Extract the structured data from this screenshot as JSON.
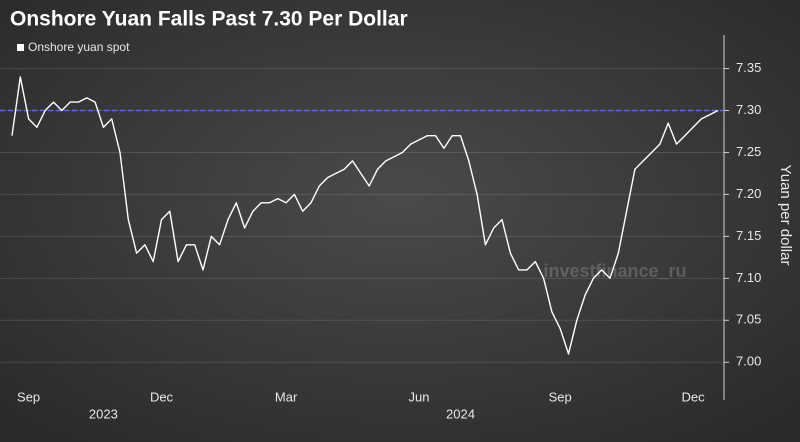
{
  "chart_data": {
    "type": "line",
    "title": "Onshore Yuan Falls Past 7.30 Per Dollar",
    "y_label": "Yuan per dollar",
    "watermark": "investfinance_ru",
    "categories": [
      null,
      null,
      "Sep",
      null,
      null,
      null,
      null,
      null,
      null,
      null,
      null,
      null,
      null,
      null,
      null,
      null,
      null,
      null,
      "Dec",
      null,
      null,
      null,
      null,
      null,
      null,
      null,
      null,
      null,
      null,
      null,
      null,
      null,
      null,
      "Mar",
      null,
      null,
      null,
      null,
      null,
      null,
      null,
      null,
      null,
      null,
      null,
      null,
      null,
      null,
      null,
      "Jun",
      null,
      null,
      null,
      null,
      null,
      null,
      null,
      null,
      null,
      null,
      null,
      null,
      null,
      null,
      null,
      null,
      "Sep",
      null,
      null,
      null,
      null,
      null,
      null,
      null,
      null,
      null,
      null,
      null,
      null,
      null,
      null,
      null,
      "Dec",
      null,
      null,
      null
    ],
    "x_groups": [
      {
        "label": "2023",
        "first": 0,
        "last": 22
      },
      {
        "label": "2024",
        "first": 23,
        "last": 85
      }
    ],
    "series": [
      {
        "name": "Onshore yuan spot",
        "color": "#ffffff",
        "values": [
          7.27,
          7.34,
          7.29,
          7.28,
          7.3,
          7.31,
          7.3,
          7.31,
          7.31,
          7.315,
          7.31,
          7.28,
          7.29,
          7.25,
          7.17,
          7.13,
          7.14,
          7.12,
          7.17,
          7.18,
          7.12,
          7.14,
          7.14,
          7.11,
          7.15,
          7.14,
          7.17,
          7.19,
          7.16,
          7.18,
          7.19,
          7.19,
          7.195,
          7.19,
          7.2,
          7.18,
          7.19,
          7.21,
          7.22,
          7.225,
          7.23,
          7.24,
          7.225,
          7.21,
          7.23,
          7.24,
          7.245,
          7.25,
          7.26,
          7.265,
          7.27,
          7.27,
          7.255,
          7.27,
          7.27,
          7.24,
          7.2,
          7.14,
          7.16,
          7.17,
          7.13,
          7.11,
          7.11,
          7.12,
          7.1,
          7.06,
          7.04,
          7.01,
          7.05,
          7.08,
          7.1,
          7.11,
          7.1,
          7.13,
          7.18,
          7.23,
          7.24,
          7.25,
          7.26,
          7.285,
          7.26,
          7.27,
          7.28,
          7.29,
          7.295,
          7.3
        ]
      }
    ],
    "reference_line": {
      "value": 7.3,
      "color": "#5a64ff"
    },
    "ylim": [
      6.955,
      7.39
    ],
    "yticks": [
      {
        "value": 7.0,
        "label": "7.00"
      },
      7.05,
      {
        "value": 7.1,
        "label": "7.10"
      },
      7.15,
      {
        "value": 7.2,
        "label": "7.20"
      },
      7.25,
      {
        "value": 7.3,
        "label": "7.30"
      },
      7.35
    ],
    "grid": true
  }
}
